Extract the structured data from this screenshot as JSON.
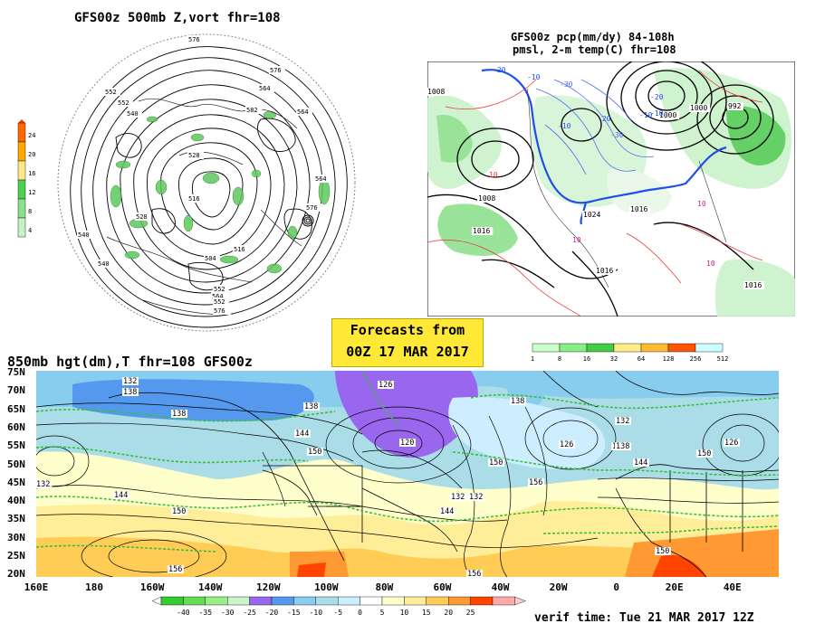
{
  "panels": {
    "vort": {
      "title": "GFS00z   500mb Z,vort    fhr=108",
      "colorbar": {
        "colors": [
          "#ff6a00",
          "#ffa800",
          "#ffe88a",
          "#4dd04d",
          "#8be08b",
          "#c6f0c6"
        ],
        "labels": [
          "24",
          "20",
          "16",
          "12",
          "8",
          "4"
        ]
      },
      "contour_labels": [
        "576",
        "576",
        "564",
        "552",
        "540",
        "528",
        "516",
        "504",
        "552",
        "564",
        "576",
        "540",
        "516",
        "552",
        "564",
        "576",
        "528",
        "540",
        "576",
        "564",
        "552",
        "582"
      ]
    },
    "precip": {
      "title_line1": "GFS00z pcp(mm/dy) 84-108h",
      "title_line2": "pmsl, 2-m temp(C)  fhr=108",
      "colorbar": {
        "colors": [
          "#ccffcc",
          "#88ee88",
          "#44cc44",
          "#ffee88",
          "#ffbb33",
          "#ff5500",
          "#ccffff"
        ],
        "labels": [
          "1",
          "8",
          "16",
          "32",
          "64",
          "128",
          "256",
          "512"
        ]
      },
      "pressure_labels": [
        "1008",
        "1008",
        "1016",
        "1016",
        "1024",
        "1016",
        "1000",
        "992",
        "1000",
        "1016"
      ],
      "temp_labels": [
        "-20",
        "-10",
        "-30",
        "-10",
        "-20",
        "-30",
        "-10",
        "10",
        "10",
        "-20",
        "-10",
        "10",
        "10"
      ]
    },
    "hgt850": {
      "title": "850mb hgt(dm),T  fhr=108 GFS00z",
      "lat_labels": [
        "75N",
        "70N",
        "65N",
        "60N",
        "55N",
        "50N",
        "45N",
        "40N",
        "35N",
        "30N",
        "25N",
        "20N"
      ],
      "lon_labels": [
        "160E",
        "180",
        "160W",
        "140W",
        "120W",
        "100W",
        "80W",
        "60W",
        "40W",
        "20W",
        "0",
        "20E",
        "40E"
      ],
      "height_labels": [
        "132",
        "138",
        "138",
        "126",
        "138",
        "132",
        "144",
        "150",
        "120",
        "132",
        "126",
        "138",
        "144",
        "150",
        "156",
        "150",
        "138",
        "144",
        "150",
        "132",
        "144",
        "156",
        "150",
        "156",
        "132",
        "138",
        "126"
      ],
      "colorbar": {
        "colors": [
          "#33cc33",
          "#66dd55",
          "#99ee88",
          "#ccf5cc",
          "#9966ee",
          "#5599ee",
          "#88ccee",
          "#aadde8",
          "#cceeff",
          "#ffffff",
          "#ffffcc",
          "#ffee99",
          "#ffcc55",
          "#ff9933",
          "#ff4400",
          "#ffaaaa"
        ],
        "labels": [
          "-40",
          "-35",
          "-30",
          "-25",
          "-20",
          "-15",
          "-10",
          "-5",
          "0",
          "5",
          "10",
          "15",
          "20",
          "25"
        ]
      }
    }
  },
  "banner": {
    "line1": "Forecasts from",
    "line2": "00Z 17 MAR 2017"
  },
  "verif": "verif time: Tue 21 MAR 2017 12Z"
}
